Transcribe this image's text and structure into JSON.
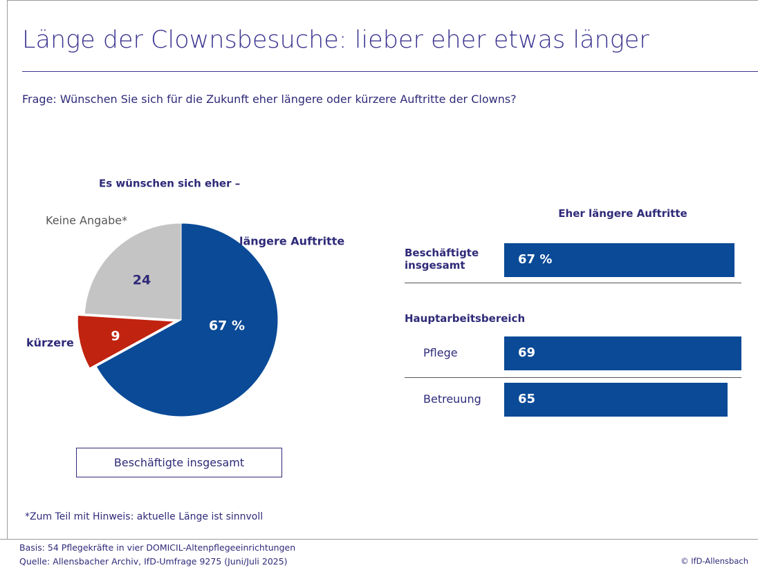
{
  "title": "Länge der Clownsbesuche: lieber eher etwas länger",
  "question": "Frage: Wünschen Sie sich für die Zukunft eher längere oder kürzere Auftritte der Clowns?",
  "footnote": "*Zum Teil mit Hinweis: aktuelle Länge ist sinnvoll",
  "basis": "Basis: 54 Pflegekräfte in vier DOMICIL-Altenpflegeeinrichtungen",
  "source": "Quelle: Allensbacher Archiv, IfD-Umfrage 9275 (Juni/Juli 2025)",
  "copyright": "© IfD-Allensbach",
  "chart_data": [
    {
      "type": "pie",
      "title": "Es wünschen sich eher –",
      "caption": "Beschäftigte insgesamt",
      "categories": [
        "längere Auftritte",
        "kürzere",
        "Keine Angabe*"
      ],
      "values": [
        67,
        9,
        24
      ],
      "value_labels": [
        "67 %",
        "9",
        "24"
      ],
      "colors": [
        "#0a4a97",
        "#c0230f",
        "#c4c4c4"
      ]
    },
    {
      "type": "bar",
      "title": "Eher längere Auftritte",
      "group_label": "Hauptarbeitsbereich",
      "categories": [
        "Beschäftigte insgesamt",
        "Pflege",
        "Betreuung"
      ],
      "values": [
        67,
        69,
        65
      ],
      "value_labels": [
        "67 %",
        "69",
        "65"
      ],
      "color": "#0a4a97"
    }
  ]
}
